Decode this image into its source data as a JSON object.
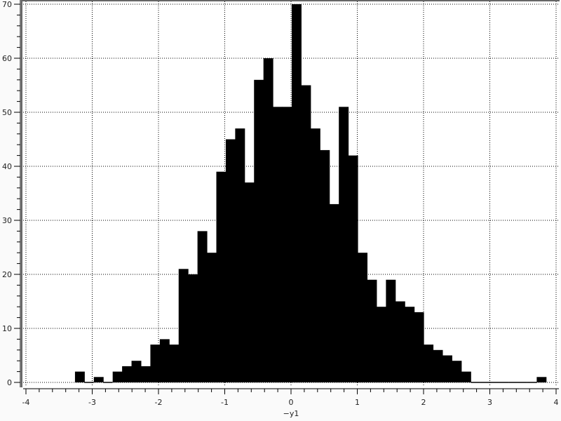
{
  "chart_data": {
    "type": "bar",
    "subtype": "histogram",
    "title": "",
    "xlabel": "−y1",
    "ylabel": "",
    "xlim": [
      -4,
      4
    ],
    "ylim": [
      0,
      70
    ],
    "bin_range": [
      -3.26,
      3.85
    ],
    "values": [
      2,
      0,
      1,
      0,
      2,
      3,
      4,
      3,
      7,
      8,
      7,
      21,
      20,
      28,
      24,
      39,
      45,
      47,
      37,
      56,
      60,
      51,
      51,
      70,
      55,
      47,
      43,
      33,
      51,
      42,
      24,
      19,
      14,
      19,
      15,
      14,
      13,
      7,
      6,
      5,
      4,
      2,
      0,
      0,
      0,
      0,
      0,
      0,
      0,
      1
    ],
    "x_ticks": [
      "-4",
      "-3",
      "-2",
      "-1",
      "0",
      "1",
      "2",
      "3",
      "4"
    ],
    "y_ticks": [
      "0",
      "10",
      "20",
      "30",
      "40",
      "50",
      "60",
      "70"
    ],
    "grid": true,
    "bar_color": "#000000"
  }
}
